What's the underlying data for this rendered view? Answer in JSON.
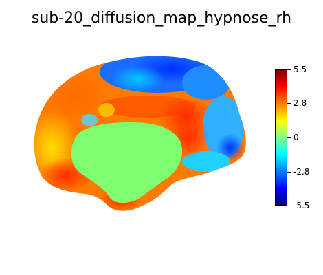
{
  "figure": {
    "title": "sub-20_diffusion_map_hypnose_rh"
  },
  "colorbar": {
    "colormap": "jet",
    "vmin": -5.5,
    "vmax": 5.5,
    "ticks": [
      {
        "value": 5.5,
        "label": "5.5"
      },
      {
        "value": 2.8,
        "label": "2.8"
      },
      {
        "value": 0,
        "label": "0"
      },
      {
        "value": -2.8,
        "label": "-2.8"
      },
      {
        "value": -5.5,
        "label": "-5.5"
      }
    ]
  }
}
